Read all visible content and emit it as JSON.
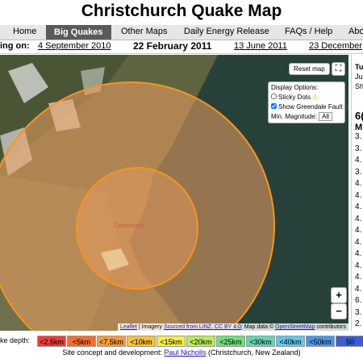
{
  "header": {
    "title": "Christchurch Quake Map"
  },
  "nav": [
    "Home",
    "Big Quakes",
    "Other Maps",
    "Daily Energy Release",
    "FAQs / Help",
    "Abo"
  ],
  "dates": {
    "label": "ing on:",
    "items": [
      "4 September 2010",
      "22 February 2011",
      "13 June 2011",
      "23 December"
    ]
  },
  "map": {
    "reset": "Reset map",
    "options_title": "Display Options:",
    "sticky": "Sticky Dots",
    "greendale": "Show Greendale Fault",
    "min_mag": "Min. Magnitude:",
    "min_mag_value": "All",
    "place": "Christchurch",
    "zoom_in": "+",
    "zoom_out": "−",
    "attribution": [
      "Leaflet",
      "| Imagery",
      "Sourced from LINZ. CC BY 4.0",
      "; Map data ©",
      "OpenStreetMap",
      "contributors"
    ]
  },
  "sidebar": {
    "lines": [
      "Tu",
      "Ju",
      "Sh"
    ],
    "big": "6(",
    "sub": "M",
    "list": [
      "3.",
      "3.",
      "4.",
      "3.",
      "4.",
      "4.",
      "4.",
      "4.",
      "4.",
      "4.",
      "4.",
      "4.",
      "4.",
      "4.",
      "6.",
      "3.",
      "2."
    ]
  },
  "legend": {
    "label": "ke depth:",
    "items": [
      "<2.5km",
      "<5km",
      "<7.5km",
      "<10km",
      "<15km",
      "<20km",
      "<25km",
      "<30km",
      "<40km",
      "<50km",
      "50"
    ]
  },
  "footer": {
    "text": "Site concept and development:",
    "author": "Paul Nicholls",
    "place": "(Christchurch, New Zealand)"
  }
}
